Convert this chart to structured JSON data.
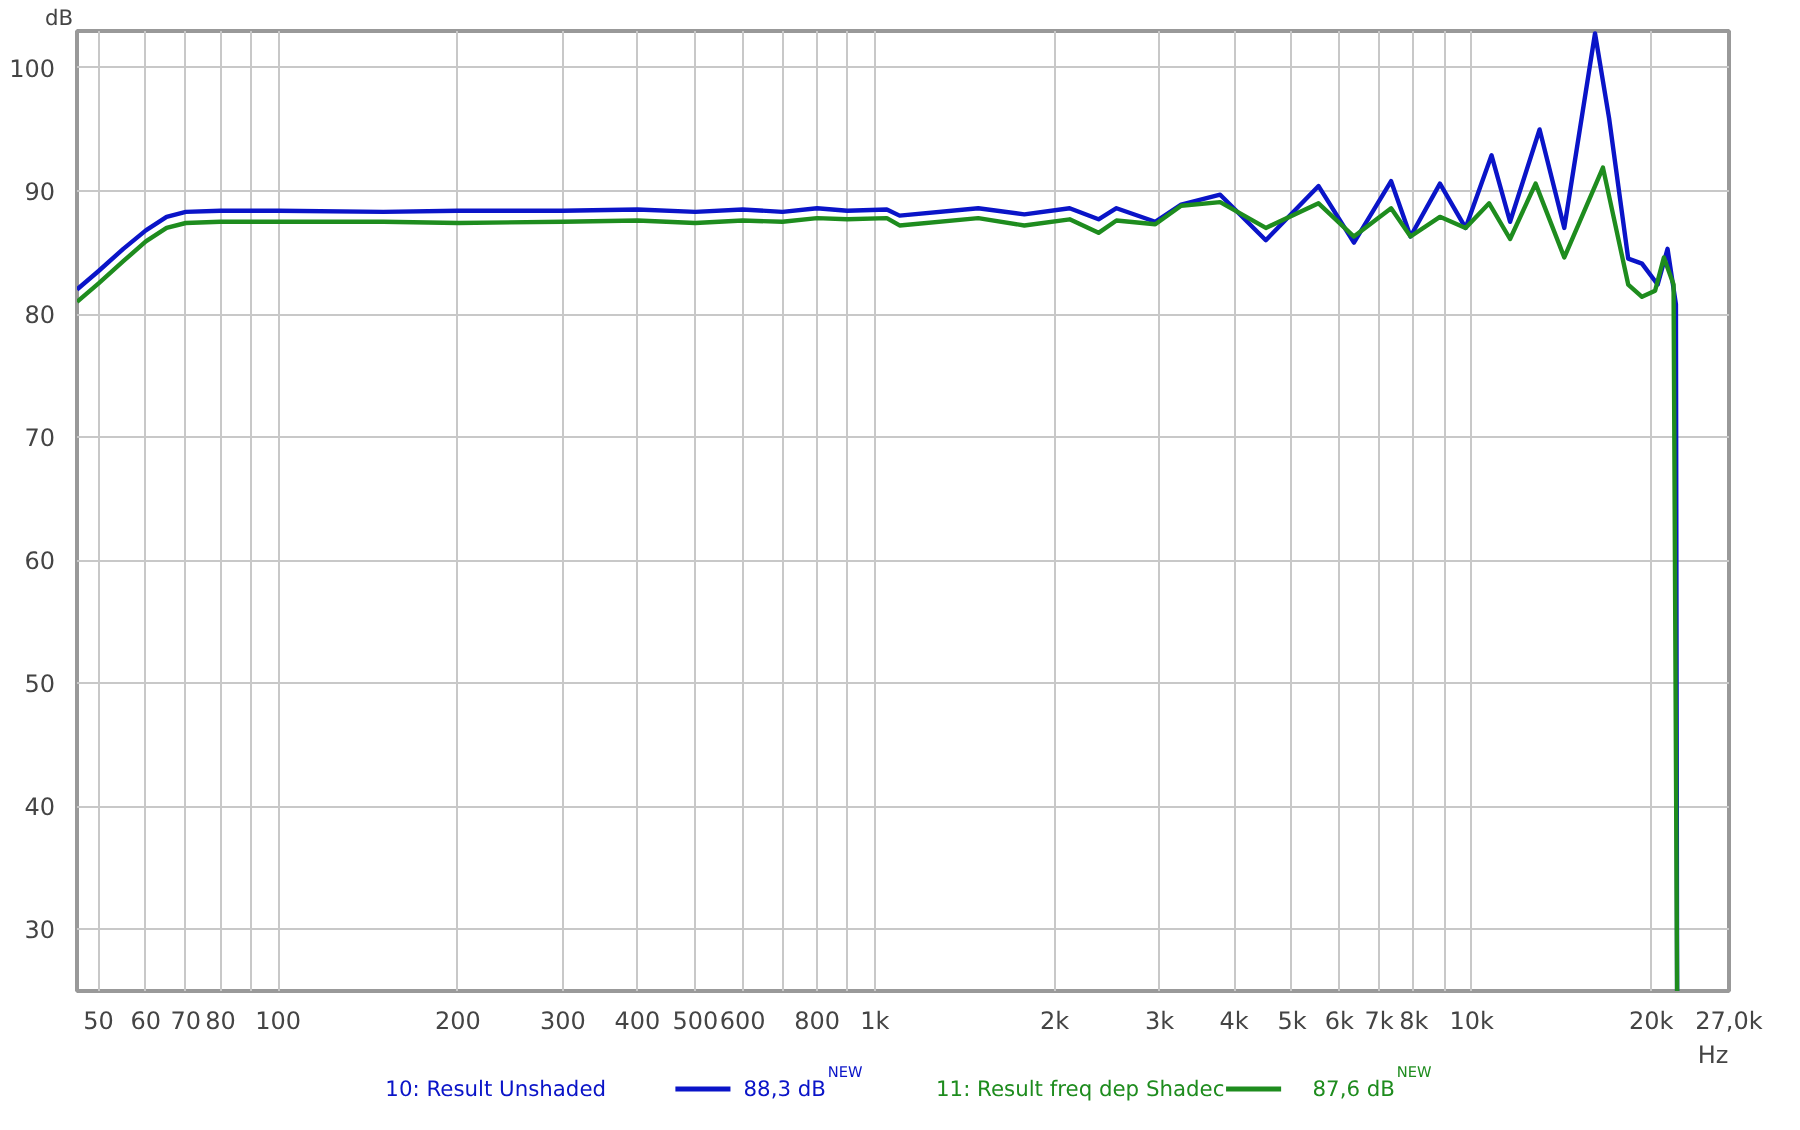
{
  "chart_data": {
    "type": "line",
    "ylabel": "dB",
    "log": "x",
    "grid": true,
    "legend": "bottom",
    "line_style": "solid",
    "marker": "none",
    "xlim": [
      46,
      27000
    ],
    "ylim": [
      25,
      103
    ],
    "xticks": [
      50,
      60,
      70,
      80,
      {
        "value": 90,
        "label": null
      },
      100,
      200,
      300,
      400,
      500,
      600,
      {
        "value": 700,
        "label": null
      },
      800,
      {
        "value": 900,
        "label": null
      },
      {
        "value": 1000,
        "label": "1k"
      },
      {
        "value": 2000,
        "label": "2k"
      },
      {
        "value": 3000,
        "label": "3k"
      },
      {
        "value": 4000,
        "label": "4k"
      },
      {
        "value": 5000,
        "label": "5k"
      },
      {
        "value": 6000,
        "label": "6k"
      },
      {
        "value": 7000,
        "label": "7k"
      },
      {
        "value": 8000,
        "label": "8k"
      },
      {
        "value": 9000,
        "label": null
      },
      {
        "value": 10000,
        "label": "10k"
      },
      {
        "value": 20000,
        "label": "20k"
      },
      {
        "value": 27000,
        "label": "27,0k"
      }
    ],
    "xlabel": "Hz",
    "yticks": [
      30,
      40,
      50,
      60,
      70,
      80,
      90,
      100
    ],
    "annotations": [
      "88,3 dB$^{NEW}$",
      "87,6 dB$^{NEW}$"
    ],
    "series": [
      {
        "name": "10: Result Unshaded",
        "color": "#0a14c8",
        "x": [
          46,
          50,
          55,
          60,
          65,
          70,
          80,
          100,
          150,
          200,
          300,
          400,
          500,
          600,
          700,
          800,
          899,
          1047,
          1100,
          1490,
          1780,
          2120,
          2370,
          2540,
          2950,
          3260,
          3790,
          4520,
          5540,
          6350,
          7330,
          7900,
          8850,
          9770,
          10800,
          11600,
          13000,
          14300,
          16100,
          17000,
          18300,
          19300,
          20500,
          21300,
          22000,
          22100
        ],
        "values": [
          82.0,
          83.5,
          85.3,
          86.8,
          87.9,
          88.3,
          88.4,
          88.4,
          88.3,
          88.4,
          88.4,
          88.5,
          88.3,
          88.5,
          88.3,
          88.6,
          88.4,
          88.5,
          88.0,
          88.6,
          88.1,
          88.6,
          87.7,
          88.6,
          87.5,
          88.9,
          89.7,
          86.0,
          90.4,
          85.8,
          90.8,
          86.3,
          90.6,
          87.0,
          92.9,
          87.5,
          95.0,
          87.0,
          102.8,
          95.9,
          84.5,
          84.1,
          82.4,
          85.3,
          80.8,
          25
        ]
      },
      {
        "name": "11: Result freq dep Shadec",
        "color": "#1e8c1e",
        "x": [
          46,
          50,
          55,
          60,
          65,
          70,
          80,
          100,
          150,
          200,
          300,
          400,
          500,
          600,
          700,
          800,
          899,
          1047,
          1100,
          1490,
          1780,
          2120,
          2370,
          2540,
          2950,
          3260,
          3790,
          4520,
          5540,
          6350,
          7330,
          7900,
          8850,
          9770,
          10700,
          11600,
          12800,
          14300,
          16600,
          18300,
          19300,
          20300,
          21000,
          21800,
          22100
        ],
        "values": [
          81.0,
          82.5,
          84.3,
          85.9,
          87.0,
          87.4,
          87.5,
          87.5,
          87.5,
          87.4,
          87.5,
          87.6,
          87.4,
          87.6,
          87.5,
          87.8,
          87.7,
          87.8,
          87.2,
          87.8,
          87.2,
          87.7,
          86.6,
          87.6,
          87.3,
          88.8,
          89.1,
          87.0,
          89.0,
          86.3,
          88.6,
          86.3,
          87.9,
          87.0,
          89.0,
          86.1,
          90.6,
          84.6,
          91.9,
          82.4,
          81.4,
          81.9,
          84.6,
          82.4,
          25
        ]
      }
    ]
  }
}
